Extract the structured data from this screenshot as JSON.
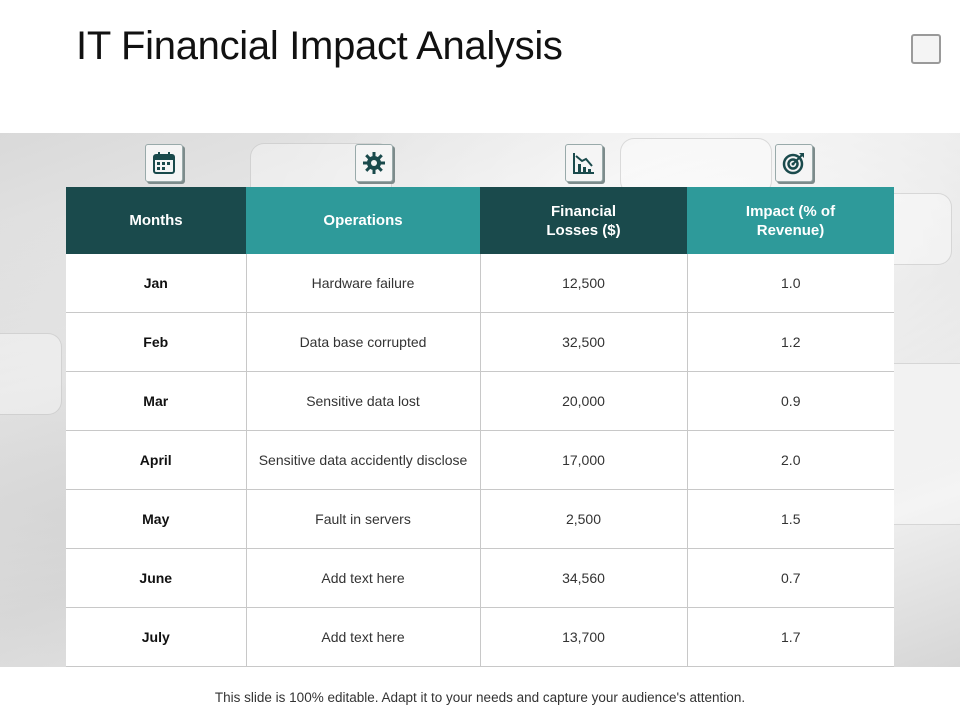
{
  "slide": {
    "title": "IT Financial Impact Analysis",
    "footer": "This slide is 100% editable. Adapt it to your needs and capture your audience's attention."
  },
  "icons": [
    "calendar-icon",
    "gear-icon",
    "bar-chart-down-icon",
    "target-icon"
  ],
  "colors": {
    "header_dark": "#1a4a4c",
    "header_teal": "#2e9a9a"
  },
  "table": {
    "headers": {
      "months": "Months",
      "operations": "Operations",
      "losses_line1": "Financial",
      "losses_line2": "Losses ($)",
      "impact_line1": "Impact  (% of",
      "impact_line2": "Revenue)"
    },
    "rows": [
      {
        "month": "Jan",
        "operation": "Hardware failure",
        "loss": "12,500",
        "impact": "1.0"
      },
      {
        "month": "Feb",
        "operation": "Data base corrupted",
        "loss": "32,500",
        "impact": "1.2"
      },
      {
        "month": "Mar",
        "operation": "Sensitive data lost",
        "loss": "20,000",
        "impact": "0.9"
      },
      {
        "month": "April",
        "operation": "Sensitive data accidently disclose",
        "loss": "17,000",
        "impact": "2.0"
      },
      {
        "month": "May",
        "operation": "Fault in servers",
        "loss": "2,500",
        "impact": "1.5"
      },
      {
        "month": "June",
        "operation": "Add text here",
        "loss": "34,560",
        "impact": "0.7"
      },
      {
        "month": "July",
        "operation": "Add text here",
        "loss": "13,700",
        "impact": "1.7"
      }
    ]
  }
}
